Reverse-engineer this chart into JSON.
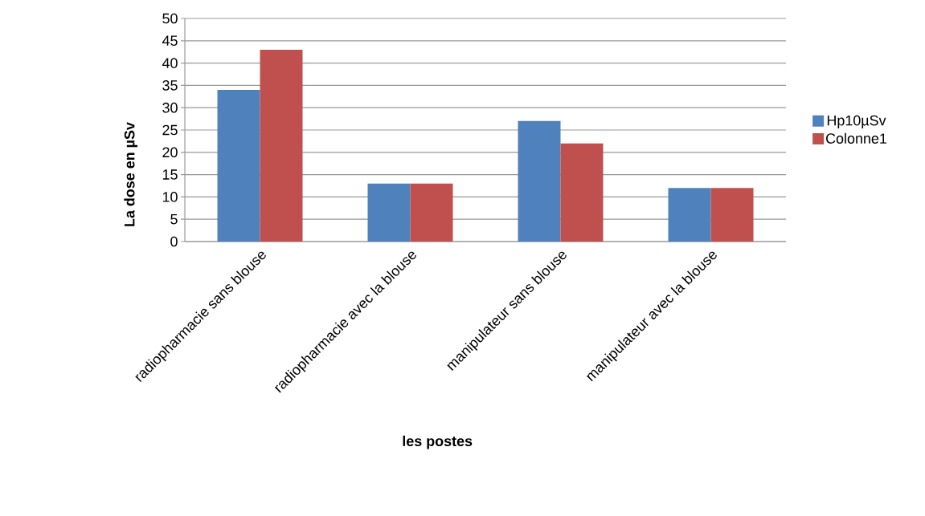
{
  "chart_data": {
    "type": "bar",
    "xlabel": "les postes",
    "ylabel": "La dose en µSv",
    "categories": [
      "radiopharmacie sans blouse",
      "radiopharmacie avec la blouse",
      "manipulateur sans blouse",
      "manipulateur avec la blouse"
    ],
    "series": [
      {
        "name": "Hp10µSv",
        "color": "#4f81bd",
        "values": [
          34,
          13,
          27,
          12
        ]
      },
      {
        "name": "Colonne1",
        "color": "#c0504d",
        "values": [
          43,
          13,
          22,
          12
        ]
      }
    ],
    "ylim": [
      0,
      50
    ],
    "yticks": [
      0,
      5,
      10,
      15,
      20,
      25,
      30,
      35,
      40,
      45,
      50
    ],
    "grid": "y",
    "legend": "right"
  }
}
